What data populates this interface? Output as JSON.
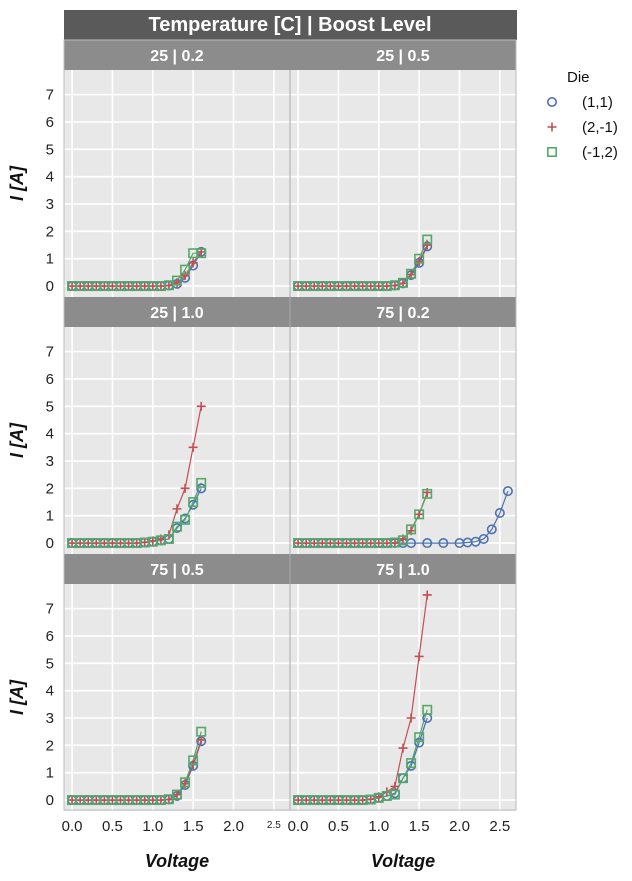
{
  "chart_data": {
    "type": "line",
    "title": "Temperature [C] | Boost Level",
    "xlabel": "Voltage",
    "ylabel": "I [A]",
    "xlim": [
      -0.1,
      2.7
    ],
    "ylim": [
      -0.4,
      7.9
    ],
    "xticks": [
      "0.0",
      "0.5",
      "1.0",
      "1.5",
      "2.0",
      "2.5"
    ],
    "xticks_panel2": [
      "0.0",
      "0.5",
      "1.0",
      "1.5",
      "2.0",
      "2.5"
    ],
    "yticks": [
      "0",
      "1",
      "2",
      "3",
      "4",
      "5",
      "6",
      "7"
    ],
    "grid": true,
    "legend": {
      "title": "Die",
      "position": "right",
      "entries": [
        {
          "label": "(1,1)",
          "marker": "circle",
          "color": "#4c72b0"
        },
        {
          "label": "(2,-1)",
          "marker": "plus",
          "color": "#c44e52"
        },
        {
          "label": "(-1,2)",
          "marker": "square",
          "color": "#55a868"
        }
      ]
    },
    "colors": {
      "panel_bg": "#e8e8e8",
      "strip_bg": "#8c8c8c",
      "title_bg": "#5a5a5a",
      "grid": "#ffffff"
    },
    "facets": [
      {
        "label": "25 | 0.2",
        "series": [
          {
            "name": "(1,1)",
            "x": [
              0,
              0.1,
              0.2,
              0.3,
              0.4,
              0.5,
              0.6,
              0.7,
              0.8,
              0.9,
              1.0,
              1.1,
              1.2,
              1.3,
              1.4,
              1.5,
              1.6
            ],
            "y": [
              0,
              0,
              0,
              0,
              0,
              0,
              0,
              0,
              0,
              0,
              0,
              0,
              0.02,
              0.08,
              0.3,
              0.75,
              1.25
            ]
          },
          {
            "name": "(2,-1)",
            "x": [
              0,
              0.1,
              0.2,
              0.3,
              0.4,
              0.5,
              0.6,
              0.7,
              0.8,
              0.9,
              1.0,
              1.1,
              1.2,
              1.3,
              1.4,
              1.5,
              1.6
            ],
            "y": [
              0,
              0,
              0,
              0,
              0,
              0,
              0,
              0,
              0,
              0,
              0,
              0,
              0.02,
              0.12,
              0.38,
              0.85,
              1.25
            ]
          },
          {
            "name": "(-1,2)",
            "x": [
              0,
              0.1,
              0.2,
              0.3,
              0.4,
              0.5,
              0.6,
              0.7,
              0.8,
              0.9,
              1.0,
              1.1,
              1.2,
              1.3,
              1.4,
              1.5,
              1.6
            ],
            "y": [
              0,
              0,
              0,
              0,
              0,
              0,
              0,
              0,
              0,
              0,
              0,
              0,
              0.03,
              0.2,
              0.6,
              1.2,
              1.2
            ]
          }
        ]
      },
      {
        "label": "25 | 0.5",
        "series": [
          {
            "name": "(1,1)",
            "x": [
              0,
              0.1,
              0.2,
              0.3,
              0.4,
              0.5,
              0.6,
              0.7,
              0.8,
              0.9,
              1.0,
              1.1,
              1.2,
              1.3,
              1.4,
              1.5,
              1.6
            ],
            "y": [
              0,
              0,
              0,
              0,
              0,
              0,
              0,
              0,
              0,
              0,
              0,
              0,
              0.02,
              0.1,
              0.4,
              0.85,
              1.45
            ]
          },
          {
            "name": "(2,-1)",
            "x": [
              0,
              0.1,
              0.2,
              0.3,
              0.4,
              0.5,
              0.6,
              0.7,
              0.8,
              0.9,
              1.0,
              1.1,
              1.2,
              1.3,
              1.4,
              1.5,
              1.6
            ],
            "y": [
              0,
              0,
              0,
              0,
              0,
              0,
              0,
              0,
              0,
              0,
              0,
              0,
              0.02,
              0.1,
              0.42,
              0.9,
              1.5
            ]
          },
          {
            "name": "(-1,2)",
            "x": [
              0,
              0.1,
              0.2,
              0.3,
              0.4,
              0.5,
              0.6,
              0.7,
              0.8,
              0.9,
              1.0,
              1.1,
              1.2,
              1.3,
              1.4,
              1.5,
              1.6
            ],
            "y": [
              0,
              0,
              0,
              0,
              0,
              0,
              0,
              0,
              0,
              0,
              0,
              0,
              0.03,
              0.12,
              0.45,
              1.0,
              1.7
            ]
          }
        ]
      },
      {
        "label": "25 | 1.0",
        "series": [
          {
            "name": "(1,1)",
            "x": [
              0,
              0.1,
              0.2,
              0.3,
              0.4,
              0.5,
              0.6,
              0.7,
              0.8,
              0.9,
              1.0,
              1.1,
              1.2,
              1.3,
              1.4,
              1.5,
              1.6
            ],
            "y": [
              0,
              0,
              0,
              0,
              0,
              0,
              0,
              0,
              0,
              0.02,
              0.05,
              0.1,
              0.15,
              0.55,
              0.9,
              1.4,
              2.0
            ]
          },
          {
            "name": "(2,-1)",
            "x": [
              0,
              0.1,
              0.2,
              0.3,
              0.4,
              0.5,
              0.6,
              0.7,
              0.8,
              0.9,
              1.0,
              1.1,
              1.2,
              1.3,
              1.4,
              1.5,
              1.6
            ],
            "y": [
              0,
              0,
              0,
              0,
              0,
              0,
              0,
              0,
              0,
              0.03,
              0.08,
              0.15,
              0.3,
              1.25,
              2.0,
              3.5,
              5.0
            ]
          },
          {
            "name": "(-1,2)",
            "x": [
              0,
              0.1,
              0.2,
              0.3,
              0.4,
              0.5,
              0.6,
              0.7,
              0.8,
              0.9,
              1.0,
              1.1,
              1.2,
              1.3,
              1.4,
              1.5,
              1.6
            ],
            "y": [
              0,
              0,
              0,
              0,
              0,
              0,
              0,
              0,
              0,
              0.02,
              0.05,
              0.1,
              0.15,
              0.6,
              0.85,
              1.5,
              2.2
            ]
          }
        ]
      },
      {
        "label": "75 | 0.2",
        "series": [
          {
            "name": "(1,1)",
            "x": [
              0,
              0.1,
              0.2,
              0.3,
              0.4,
              0.5,
              0.6,
              0.7,
              0.8,
              0.9,
              1.0,
              1.1,
              1.2,
              1.3,
              1.4,
              1.6,
              1.8,
              2.0,
              2.1,
              2.2,
              2.3,
              2.4,
              2.5,
              2.6
            ],
            "y": [
              0,
              0,
              0,
              0,
              0,
              0,
              0,
              0,
              0,
              0,
              0,
              0,
              0,
              0,
              0,
              0,
              0,
              0,
              0.02,
              0.05,
              0.15,
              0.5,
              1.1,
              1.9
            ]
          },
          {
            "name": "(2,-1)",
            "x": [
              0,
              0.1,
              0.2,
              0.3,
              0.4,
              0.5,
              0.6,
              0.7,
              0.8,
              0.9,
              1.0,
              1.1,
              1.2,
              1.3,
              1.4,
              1.5,
              1.6
            ],
            "y": [
              0,
              0,
              0,
              0,
              0,
              0,
              0,
              0,
              0,
              0,
              0,
              0,
              0,
              0.15,
              0.45,
              1.05,
              1.85
            ]
          },
          {
            "name": "(-1,2)",
            "x": [
              0,
              0.1,
              0.2,
              0.3,
              0.4,
              0.5,
              0.6,
              0.7,
              0.8,
              0.9,
              1.0,
              1.1,
              1.2,
              1.3,
              1.4,
              1.5,
              1.6
            ],
            "y": [
              0,
              0,
              0,
              0,
              0,
              0,
              0,
              0,
              0,
              0,
              0,
              0,
              0.02,
              0.1,
              0.5,
              1.05,
              1.8
            ]
          }
        ]
      },
      {
        "label": "75 | 0.5",
        "series": [
          {
            "name": "(1,1)",
            "x": [
              0,
              0.1,
              0.2,
              0.3,
              0.4,
              0.5,
              0.6,
              0.7,
              0.8,
              0.9,
              1.0,
              1.1,
              1.2,
              1.3,
              1.4,
              1.5,
              1.6
            ],
            "y": [
              0,
              0,
              0,
              0,
              0,
              0,
              0,
              0,
              0,
              0,
              0,
              0,
              0.02,
              0.15,
              0.55,
              1.25,
              2.15
            ]
          },
          {
            "name": "(2,-1)",
            "x": [
              0,
              0.1,
              0.2,
              0.3,
              0.4,
              0.5,
              0.6,
              0.7,
              0.8,
              0.9,
              1.0,
              1.1,
              1.2,
              1.3,
              1.4,
              1.5,
              1.6
            ],
            "y": [
              0,
              0,
              0,
              0,
              0,
              0,
              0,
              0,
              0,
              0,
              0,
              0,
              0.02,
              0.2,
              0.6,
              1.3,
              2.2
            ]
          },
          {
            "name": "(-1,2)",
            "x": [
              0,
              0.1,
              0.2,
              0.3,
              0.4,
              0.5,
              0.6,
              0.7,
              0.8,
              0.9,
              1.0,
              1.1,
              1.2,
              1.3,
              1.4,
              1.5,
              1.6
            ],
            "y": [
              0,
              0,
              0,
              0,
              0,
              0,
              0,
              0,
              0,
              0,
              0,
              0,
              0.03,
              0.2,
              0.65,
              1.45,
              2.5
            ]
          }
        ]
      },
      {
        "label": "75 | 1.0",
        "series": [
          {
            "name": "(1,1)",
            "x": [
              0,
              0.1,
              0.2,
              0.3,
              0.4,
              0.5,
              0.6,
              0.7,
              0.8,
              0.9,
              1.0,
              1.1,
              1.2,
              1.3,
              1.4,
              1.5,
              1.6
            ],
            "y": [
              0,
              0,
              0,
              0,
              0,
              0,
              0,
              0,
              0,
              0.02,
              0.08,
              0.15,
              0.25,
              0.8,
              1.25,
              2.1,
              3.0
            ]
          },
          {
            "name": "(2,-1)",
            "x": [
              0,
              0.1,
              0.2,
              0.3,
              0.4,
              0.5,
              0.6,
              0.7,
              0.8,
              0.9,
              1.0,
              1.1,
              1.2,
              1.3,
              1.4,
              1.5,
              1.6
            ],
            "y": [
              0,
              0,
              0,
              0,
              0,
              0,
              0,
              0,
              0,
              0.03,
              0.12,
              0.3,
              0.5,
              1.9,
              3.0,
              5.25,
              7.5
            ]
          },
          {
            "name": "(-1,2)",
            "x": [
              0,
              0.1,
              0.2,
              0.3,
              0.4,
              0.5,
              0.6,
              0.7,
              0.8,
              0.9,
              1.0,
              1.1,
              1.2,
              1.3,
              1.4,
              1.5,
              1.6
            ],
            "y": [
              0,
              0,
              0,
              0,
              0,
              0,
              0,
              0,
              0,
              0.02,
              0.08,
              0.15,
              0.2,
              0.8,
              1.35,
              2.3,
              3.3
            ]
          }
        ]
      }
    ]
  }
}
